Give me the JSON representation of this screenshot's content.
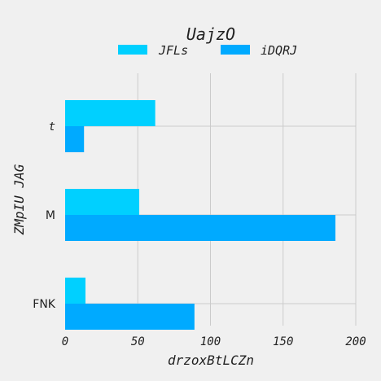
{
  "chart_data": {
    "type": "bar",
    "orientation": "horizontal",
    "title": "UajzO",
    "xlabel": "drzoxBtLCZn",
    "ylabel": "ZMpIU JAG",
    "categories": [
      "t",
      "M",
      "FNK"
    ],
    "series": [
      {
        "name": "JFLs",
        "values": [
          62,
          51,
          14
        ],
        "color": "#00d0ff"
      },
      {
        "name": "iDQRJ",
        "values": [
          13,
          186,
          89
        ],
        "color": "#00aaff"
      }
    ],
    "xlim": [
      0,
      200
    ],
    "xticks": [
      "0",
      "50",
      "100",
      "150",
      "200"
    ],
    "grid": true,
    "legend_position": "top-center"
  }
}
